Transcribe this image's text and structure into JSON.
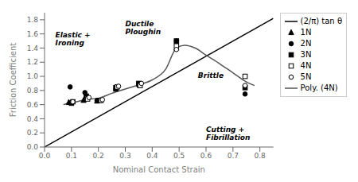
{
  "chart_data": {
    "type": "scatter",
    "xlabel": "Nominal Contact Strain",
    "ylabel": "Friction Coefficient",
    "xlim": [
      0,
      0.85
    ],
    "ylim": [
      0,
      1.9
    ],
    "xticks": [
      {
        "value": 0,
        "label": "0.0"
      },
      0.1,
      0.2,
      0.3,
      0.4,
      0.5,
      0.6,
      0.7,
      0.8
    ],
    "yticks": [
      {
        "value": 0,
        "label": "0.0"
      },
      0.2,
      0.4,
      0.6,
      0.8,
      {
        "value": 1.0,
        "label": "1.0"
      },
      1.2,
      1.4,
      1.6,
      1.8
    ],
    "grid": false,
    "legend": "right",
    "series": [
      {
        "name": "(2/π) tan θ",
        "type": "line",
        "color": "#000000",
        "line_style": "solid",
        "x": [
          0,
          0.85
        ],
        "values": [
          0,
          1.819
        ]
      },
      {
        "name": "1N",
        "type": "scatter",
        "color": "#000000",
        "marker": "triangle",
        "x": [
          0.09,
          0.145,
          0.195,
          0.265,
          0.49
        ],
        "values": [
          0.63,
          0.66,
          0.65,
          0.82,
          1.4
        ]
      },
      {
        "name": "2N",
        "type": "scatter",
        "color": "#000000",
        "marker": "circle",
        "x": [
          0.095,
          0.15,
          0.195,
          0.265,
          0.35,
          0.49,
          0.745
        ],
        "values": [
          0.85,
          0.77,
          0.66,
          0.82,
          0.87,
          1.5,
          0.75
        ]
      },
      {
        "name": "3N",
        "type": "scatter",
        "color": "#000000",
        "marker": "square",
        "x": [
          0.1,
          0.155,
          0.205,
          0.265,
          0.35,
          0.49,
          0.745
        ],
        "values": [
          0.62,
          0.72,
          0.66,
          0.84,
          0.9,
          1.5,
          0.84
        ]
      },
      {
        "name": "4N",
        "type": "scatter",
        "color": "#000000",
        "marker": "square-open",
        "x": [
          0.105,
          0.16,
          0.21,
          0.27,
          0.355,
          0.49,
          0.745
        ],
        "values": [
          0.64,
          0.68,
          0.66,
          0.85,
          0.87,
          1.43,
          1.0
        ]
      },
      {
        "name": "5N",
        "type": "scatter",
        "color": "#000000",
        "marker": "circle-open",
        "x": [
          0.105,
          0.165,
          0.215,
          0.275,
          0.36,
          0.49,
          0.745
        ],
        "values": [
          0.64,
          0.7,
          0.67,
          0.86,
          0.9,
          1.38,
          0.87
        ]
      },
      {
        "name": "Poly. (4N)",
        "type": "line",
        "color": "#555555",
        "line_style": "solid",
        "x": [
          0.07,
          0.09,
          0.12,
          0.15,
          0.2,
          0.25,
          0.3,
          0.35,
          0.4,
          0.45,
          0.49,
          0.52,
          0.56,
          0.6,
          0.65,
          0.7,
          0.75,
          0.78
        ],
        "values": [
          0.6,
          0.62,
          0.64,
          0.67,
          0.69,
          0.76,
          0.82,
          0.88,
          0.95,
          1.1,
          1.4,
          1.44,
          1.4,
          1.3,
          1.18,
          1.05,
          0.92,
          0.87
        ]
      }
    ],
    "annotations": [
      {
        "text": "Elastic +\nIroning",
        "x": 0.04,
        "y": 1.62
      },
      {
        "text": "Ductile\nPloughin",
        "x": 0.3,
        "y": 1.78
      },
      {
        "text": "Brittle",
        "x": 0.57,
        "y": 1.05
      },
      {
        "text": "Cutting +\nFibrillation",
        "x": 0.6,
        "y": 0.28
      }
    ]
  }
}
